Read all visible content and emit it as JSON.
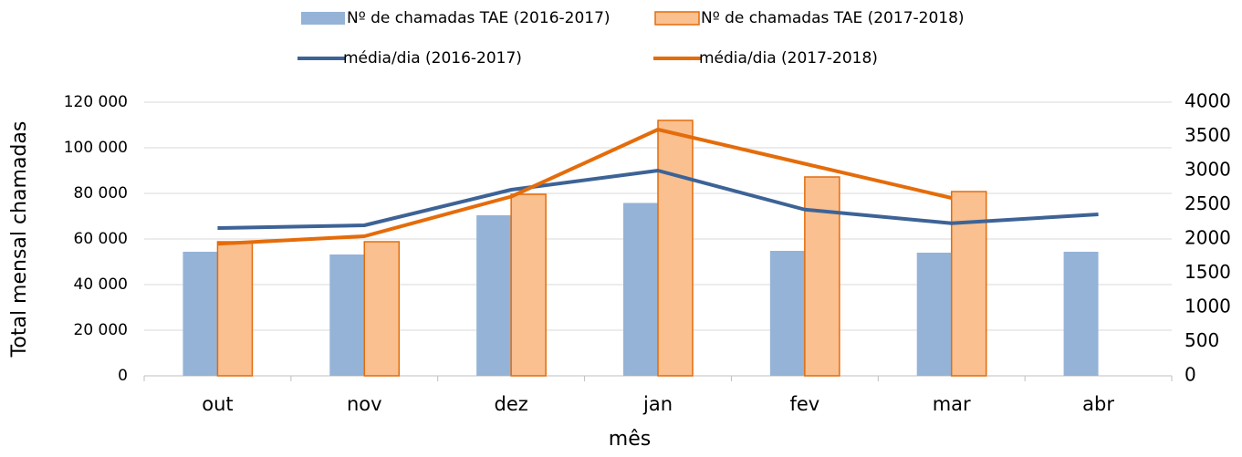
{
  "chart_data": {
    "type": "bar-line",
    "categories": [
      "out",
      "nov",
      "dez",
      "jan",
      "fev",
      "mar",
      "abr"
    ],
    "series": [
      {
        "name": "Nº de chamadas TAE (2016-2017)",
        "type": "bar",
        "color": "#95b3d7",
        "values": [
          54400,
          53200,
          70400,
          75800,
          54800,
          54000,
          54400
        ]
      },
      {
        "name": "Nº de chamadas TAE (2017-2018)",
        "type": "bar",
        "color": "#fac090",
        "edge": "#e46c0a",
        "values": [
          58800,
          58800,
          79600,
          112000,
          87200,
          80800,
          null
        ]
      },
      {
        "name": "média/dia  (2016-2017)",
        "type": "line",
        "axis": "y2",
        "color": "#3d6396",
        "values": [
          2160,
          2200,
          2720,
          3000,
          2430,
          2230,
          2360
        ]
      },
      {
        "name": "média/dia  (2017-2018)",
        "type": "line",
        "axis": "y2",
        "color": "#e46c0a",
        "values": [
          1930,
          2040,
          2620,
          3600,
          3100,
          2600,
          null
        ]
      }
    ],
    "ylabel": "Total mensal chamadas",
    "xlabel": "mês",
    "ylim": [
      0,
      120000
    ],
    "yticks": [
      0,
      {
        "value": 20000,
        "label": "20 000"
      },
      {
        "value": 40000,
        "label": "40 000"
      },
      {
        "value": 60000,
        "label": "60 000"
      },
      {
        "value": 80000,
        "label": "80 000"
      },
      {
        "value": 100000,
        "label": "100 000"
      },
      {
        "value": 120000,
        "label": "120 000"
      }
    ],
    "y2lim": [
      0,
      4000
    ],
    "y2ticks": [
      0,
      500,
      1000,
      1500,
      2000,
      2500,
      3000,
      3500,
      4000
    ]
  }
}
